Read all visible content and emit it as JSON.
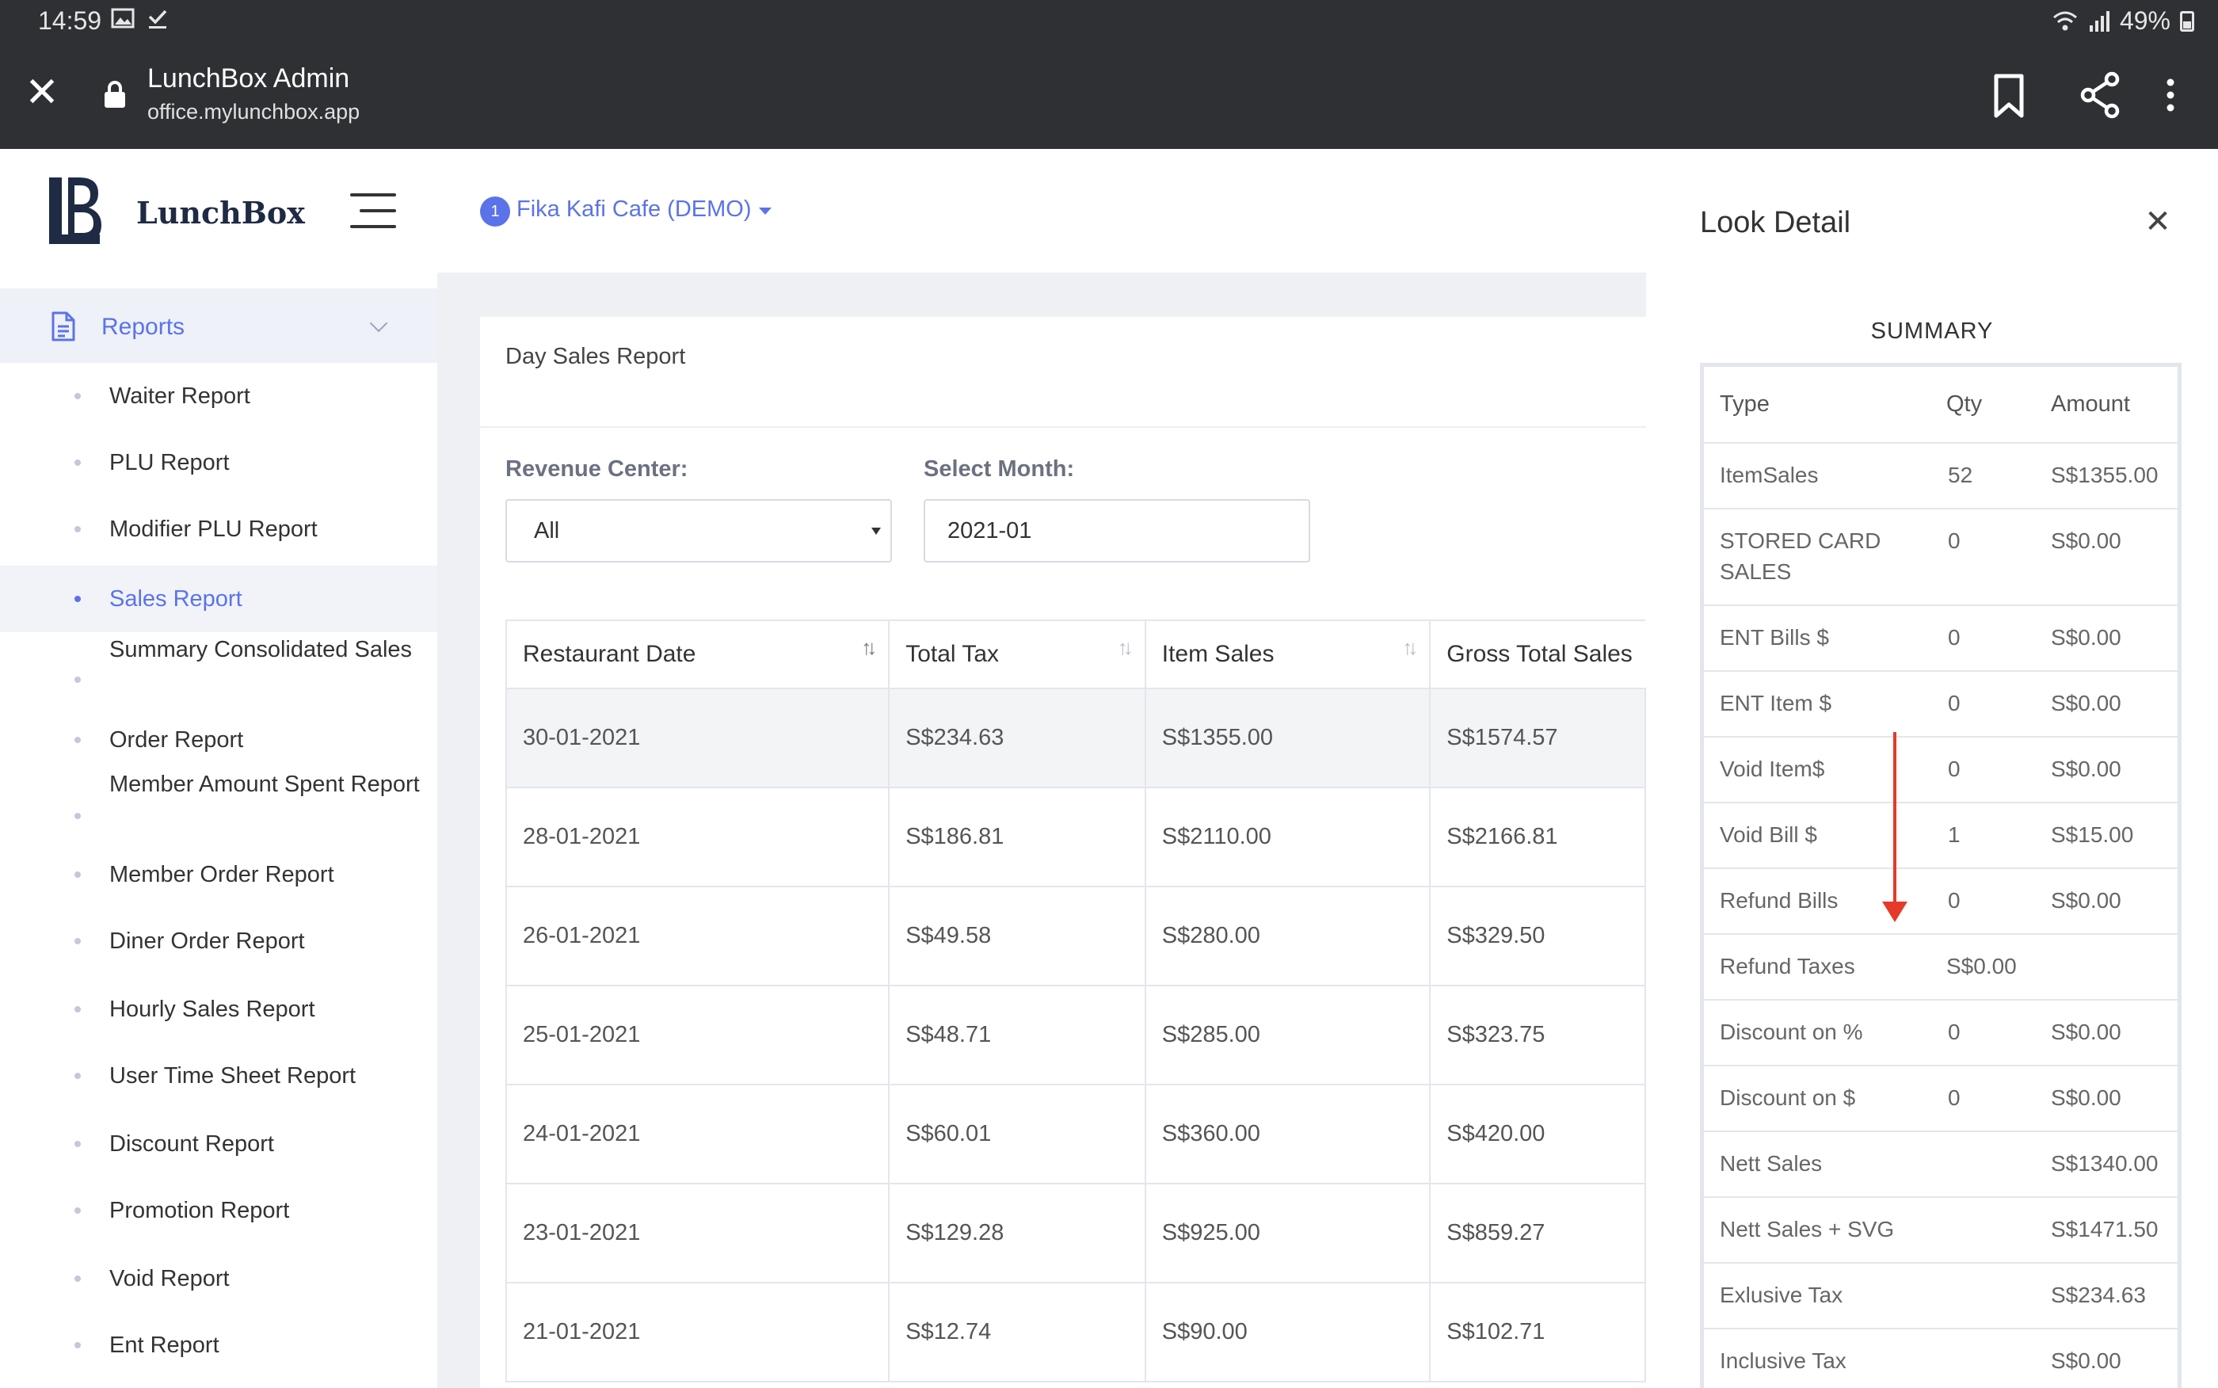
{
  "status_bar": {
    "time": "14:59",
    "battery": "49%"
  },
  "browser": {
    "title": "LunchBox Admin",
    "url": "office.mylunchbox.app"
  },
  "sidebar": {
    "brand": "LunchBox",
    "section": "Reports",
    "items": [
      "Waiter Report",
      "PLU Report",
      "Modifier PLU Report",
      "Sales Report",
      "Summary Consolidated Sales",
      "Order Report",
      "Member Amount Spent Report",
      "Member Order Report",
      "Diner Order Report",
      "Hourly Sales Report",
      "User Time Sheet Report",
      "Discount Report",
      "Promotion Report",
      "Void Report",
      "Ent Report"
    ],
    "active_item": "Sales Report"
  },
  "topbar": {
    "restaurant_badge": "1",
    "restaurant_name": "Fika Kafi Cafe (DEMO)"
  },
  "report": {
    "title": "Day Sales Report",
    "revenue_center_label": "Revenue Center:",
    "revenue_center_value": "All",
    "month_label": "Select Month:",
    "month_value": "2021-01",
    "columns": [
      "Restaurant Date",
      "Total Tax",
      "Item Sales",
      "Gross Total Sales"
    ],
    "rows": [
      [
        "30-01-2021",
        "S$234.63",
        "S$1355.00",
        "S$1574.57"
      ],
      [
        "28-01-2021",
        "S$186.81",
        "S$2110.00",
        "S$2166.81"
      ],
      [
        "26-01-2021",
        "S$49.58",
        "S$280.00",
        "S$329.50"
      ],
      [
        "25-01-2021",
        "S$48.71",
        "S$285.00",
        "S$323.75"
      ],
      [
        "24-01-2021",
        "S$60.01",
        "S$360.00",
        "S$420.00"
      ],
      [
        "23-01-2021",
        "S$129.28",
        "S$925.00",
        "S$859.27"
      ],
      [
        "21-01-2021",
        "S$12.74",
        "S$90.00",
        "S$102.71"
      ]
    ]
  },
  "detail": {
    "title": "Look Detail",
    "summary_label": "SUMMARY",
    "columns": [
      "Type",
      "Qty",
      "Amount"
    ],
    "rows": [
      [
        "ItemSales",
        "52",
        "S$1355.00"
      ],
      [
        "STORED CARD SALES",
        "0",
        "S$0.00"
      ],
      [
        "ENT Bills $",
        "0",
        "S$0.00"
      ],
      [
        "ENT Item $",
        "0",
        "S$0.00"
      ],
      [
        "Void Item$",
        "0",
        "S$0.00"
      ],
      [
        "Void Bill $",
        "1",
        "S$15.00"
      ],
      [
        "Refund Bills",
        "0",
        "S$0.00"
      ],
      [
        "Refund Taxes",
        "S$0.00",
        ""
      ],
      [
        "Discount on %",
        "0",
        "S$0.00"
      ],
      [
        "Discount on $",
        "0",
        "S$0.00"
      ],
      [
        "Nett Sales",
        "",
        "S$1340.00"
      ],
      [
        "Nett Sales + SVG",
        "",
        "S$1471.50"
      ],
      [
        "Exlusive Tax",
        "",
        "S$234.63"
      ],
      [
        "Inclusive Tax",
        "",
        "S$0.00"
      ]
    ]
  },
  "colors": {
    "accent": "#5b73e8",
    "annotation": "#e53a2b",
    "chrome": "#2f3033"
  }
}
